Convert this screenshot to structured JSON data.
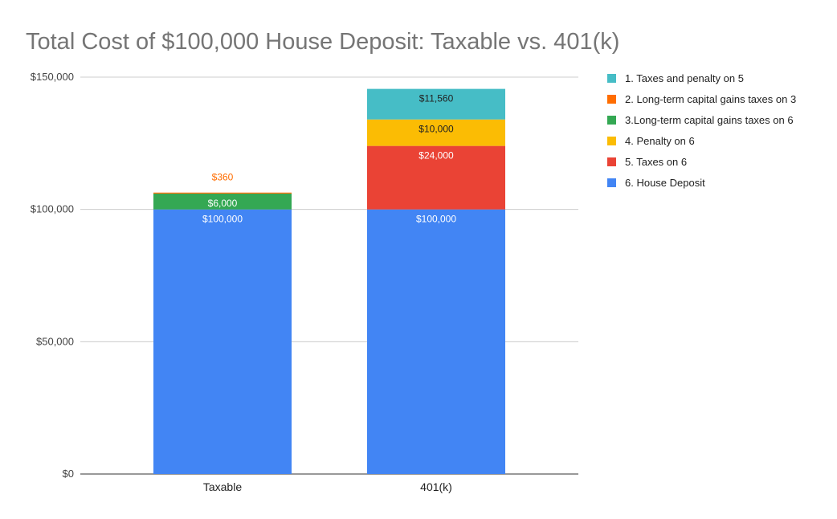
{
  "chart_data": {
    "type": "bar",
    "stacked": true,
    "title": "Total Cost of $100,000 House Deposit: Taxable vs. 401(k)",
    "categories": [
      "Taxable",
      "401(k)"
    ],
    "y_ticks": [
      "$0",
      "$50,000",
      "$100,000",
      "$150,000"
    ],
    "ylim": [
      0,
      150000
    ],
    "grid": true,
    "legend_position": "right",
    "series": [
      {
        "name": "6. House Deposit",
        "color": "#4285f4",
        "values": [
          100000,
          100000
        ],
        "labels": [
          "$100,000",
          "$100,000"
        ],
        "label_color": "#ffffff"
      },
      {
        "name": "5. Taxes on 6",
        "color": "#ea4335",
        "values": [
          0,
          24000
        ],
        "labels": [
          "",
          "$24,000"
        ],
        "label_color": "#ffffff"
      },
      {
        "name": "4. Penalty on 6",
        "color": "#fbbc04",
        "values": [
          0,
          10000
        ],
        "labels": [
          "",
          "$10,000"
        ],
        "label_color": "#222222"
      },
      {
        "name": "3.Long-term capital gains taxes on 6",
        "color": "#34a853",
        "values": [
          6000,
          0
        ],
        "labels": [
          "$6,000",
          ""
        ],
        "label_color": "#ffffff"
      },
      {
        "name": "2. Long-term capital gains taxes on 3",
        "color": "#ff6d01",
        "values": [
          360,
          0
        ],
        "labels": [
          "$360",
          ""
        ],
        "label_color": "#ff6d01"
      },
      {
        "name": "1. Taxes and penalty on 5",
        "color": "#46bdc6",
        "values": [
          0,
          11560
        ],
        "labels": [
          "",
          "$11,560"
        ],
        "label_color": "#222222"
      }
    ],
    "legend_order": [
      5,
      4,
      3,
      2,
      1,
      0
    ]
  }
}
